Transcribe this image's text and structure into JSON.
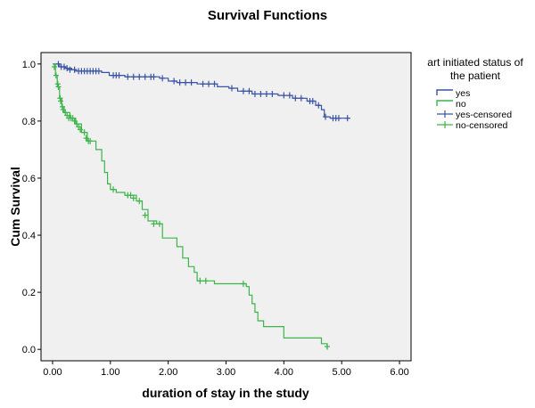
{
  "chart_data": {
    "type": "line",
    "title": "Survival Functions",
    "xlabel": "duration of stay in the study",
    "ylabel": "Cum Survival",
    "xlim": [
      -0.2,
      6.2
    ],
    "ylim": [
      -0.04,
      1.04
    ],
    "x_ticks": [
      "0.00",
      "1.00",
      "2.00",
      "3.00",
      "4.00",
      "5.00",
      "6.00"
    ],
    "y_ticks": [
      "0.0",
      "0.2",
      "0.4",
      "0.6",
      "0.8",
      "1.0"
    ],
    "grid": false,
    "legend": {
      "title_line1": "art initiated status of",
      "title_line2": "the patient",
      "placement": "right",
      "entries": [
        "yes",
        "no",
        "yes-censored",
        "no-censored"
      ]
    },
    "colors": {
      "yes": "#3a53a4",
      "no": "#3cb44a",
      "plot_bg": "#f0f0f0"
    },
    "series": [
      {
        "name": "yes",
        "step": [
          [
            0,
            1.0
          ],
          [
            0.12,
            0.99
          ],
          [
            0.22,
            0.985
          ],
          [
            0.33,
            0.98
          ],
          [
            0.4,
            0.975
          ],
          [
            0.85,
            0.97
          ],
          [
            0.98,
            0.96
          ],
          [
            1.25,
            0.955
          ],
          [
            1.85,
            0.95
          ],
          [
            2.0,
            0.94
          ],
          [
            2.15,
            0.935
          ],
          [
            2.5,
            0.93
          ],
          [
            2.85,
            0.92
          ],
          [
            3.05,
            0.915
          ],
          [
            3.2,
            0.905
          ],
          [
            3.45,
            0.895
          ],
          [
            3.9,
            0.89
          ],
          [
            4.15,
            0.88
          ],
          [
            4.4,
            0.87
          ],
          [
            4.55,
            0.855
          ],
          [
            4.65,
            0.84
          ],
          [
            4.7,
            0.815
          ],
          [
            4.8,
            0.81
          ],
          [
            5.15,
            0.81
          ]
        ],
        "censored": [
          [
            0.1,
            1.0
          ],
          [
            0.15,
            0.99
          ],
          [
            0.2,
            0.99
          ],
          [
            0.25,
            0.985
          ],
          [
            0.3,
            0.98
          ],
          [
            0.38,
            0.98
          ],
          [
            0.45,
            0.975
          ],
          [
            0.5,
            0.975
          ],
          [
            0.55,
            0.975
          ],
          [
            0.6,
            0.975
          ],
          [
            0.65,
            0.975
          ],
          [
            0.7,
            0.975
          ],
          [
            0.75,
            0.975
          ],
          [
            0.8,
            0.975
          ],
          [
            1.05,
            0.96
          ],
          [
            1.1,
            0.96
          ],
          [
            1.15,
            0.96
          ],
          [
            1.3,
            0.955
          ],
          [
            1.4,
            0.955
          ],
          [
            1.5,
            0.955
          ],
          [
            1.6,
            0.955
          ],
          [
            1.7,
            0.955
          ],
          [
            1.75,
            0.955
          ],
          [
            1.9,
            0.95
          ],
          [
            2.1,
            0.94
          ],
          [
            2.2,
            0.935
          ],
          [
            2.3,
            0.935
          ],
          [
            2.4,
            0.935
          ],
          [
            2.6,
            0.93
          ],
          [
            2.7,
            0.93
          ],
          [
            2.8,
            0.93
          ],
          [
            3.1,
            0.915
          ],
          [
            3.3,
            0.905
          ],
          [
            3.4,
            0.905
          ],
          [
            3.5,
            0.895
          ],
          [
            3.6,
            0.895
          ],
          [
            3.7,
            0.895
          ],
          [
            3.8,
            0.895
          ],
          [
            4.0,
            0.89
          ],
          [
            4.1,
            0.89
          ],
          [
            4.2,
            0.88
          ],
          [
            4.3,
            0.88
          ],
          [
            4.45,
            0.87
          ],
          [
            4.5,
            0.87
          ],
          [
            4.6,
            0.855
          ],
          [
            4.72,
            0.815
          ],
          [
            4.85,
            0.81
          ],
          [
            4.9,
            0.81
          ],
          [
            4.95,
            0.81
          ],
          [
            5.1,
            0.81
          ]
        ]
      },
      {
        "name": "no",
        "step": [
          [
            0,
            1.0
          ],
          [
            0.05,
            0.96
          ],
          [
            0.08,
            0.92
          ],
          [
            0.12,
            0.88
          ],
          [
            0.16,
            0.85
          ],
          [
            0.2,
            0.83
          ],
          [
            0.3,
            0.81
          ],
          [
            0.4,
            0.79
          ],
          [
            0.5,
            0.76
          ],
          [
            0.6,
            0.73
          ],
          [
            0.75,
            0.7
          ],
          [
            0.85,
            0.66
          ],
          [
            0.9,
            0.62
          ],
          [
            0.95,
            0.58
          ],
          [
            1.0,
            0.56
          ],
          [
            1.1,
            0.55
          ],
          [
            1.25,
            0.54
          ],
          [
            1.45,
            0.52
          ],
          [
            1.55,
            0.49
          ],
          [
            1.65,
            0.45
          ],
          [
            1.8,
            0.44
          ],
          [
            1.9,
            0.39
          ],
          [
            2.15,
            0.36
          ],
          [
            2.25,
            0.32
          ],
          [
            2.35,
            0.29
          ],
          [
            2.45,
            0.27
          ],
          [
            2.5,
            0.24
          ],
          [
            2.8,
            0.23
          ],
          [
            3.35,
            0.22
          ],
          [
            3.4,
            0.19
          ],
          [
            3.45,
            0.16
          ],
          [
            3.5,
            0.13
          ],
          [
            3.55,
            0.1
          ],
          [
            3.65,
            0.08
          ],
          [
            4.0,
            0.04
          ],
          [
            4.65,
            0.02
          ],
          [
            4.75,
            0.0
          ]
        ],
        "censored": [
          [
            0.03,
            0.99
          ],
          [
            0.06,
            0.96
          ],
          [
            0.09,
            0.93
          ],
          [
            0.1,
            0.92
          ],
          [
            0.13,
            0.88
          ],
          [
            0.14,
            0.87
          ],
          [
            0.17,
            0.85
          ],
          [
            0.18,
            0.84
          ],
          [
            0.22,
            0.83
          ],
          [
            0.25,
            0.82
          ],
          [
            0.28,
            0.81
          ],
          [
            0.32,
            0.81
          ],
          [
            0.35,
            0.81
          ],
          [
            0.38,
            0.8
          ],
          [
            0.42,
            0.79
          ],
          [
            0.45,
            0.78
          ],
          [
            0.48,
            0.77
          ],
          [
            0.55,
            0.76
          ],
          [
            0.58,
            0.74
          ],
          [
            0.62,
            0.73
          ],
          [
            0.65,
            0.73
          ],
          [
            1.05,
            0.56
          ],
          [
            1.3,
            0.54
          ],
          [
            1.35,
            0.54
          ],
          [
            1.4,
            0.53
          ],
          [
            1.5,
            0.52
          ],
          [
            1.6,
            0.47
          ],
          [
            1.75,
            0.44
          ],
          [
            1.85,
            0.44
          ],
          [
            2.55,
            0.24
          ],
          [
            2.65,
            0.24
          ],
          [
            3.3,
            0.23
          ],
          [
            4.75,
            0.01
          ]
        ]
      }
    ]
  }
}
